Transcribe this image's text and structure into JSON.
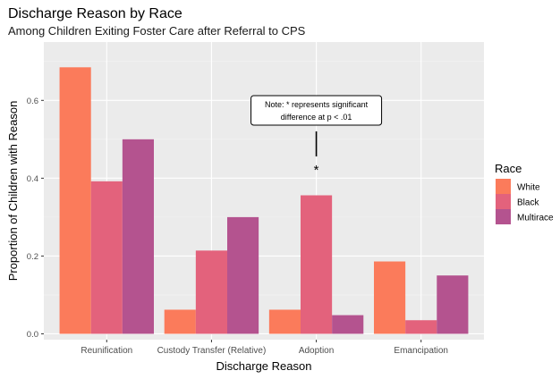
{
  "chart_data": {
    "type": "bar",
    "title": "Discharge Reason by Race",
    "subtitle": "Among Children Exiting Foster Care after Referral to CPS",
    "xlabel": "Discharge Reason",
    "ylabel": "Proportion of Children with Reason",
    "categories": [
      "Reunification",
      "Custody Transfer (Relative)",
      "Adoption",
      "Emancipation"
    ],
    "ylim": [
      -0.015,
      0.75
    ],
    "yticks": [
      0.0,
      0.2,
      0.4,
      0.6
    ],
    "ytick_labels": [
      "0.0",
      "0.2",
      "0.4",
      "0.6"
    ],
    "grid": true,
    "legend_title": "Race",
    "legend_position": "right",
    "series": [
      {
        "name": "White",
        "color": "#FB7B5B",
        "values": [
          0.685,
          0.062,
          0.062,
          0.186
        ]
      },
      {
        "name": "Black",
        "color": "#E3627C",
        "values": [
          0.392,
          0.214,
          0.356,
          0.035
        ]
      },
      {
        "name": "Multirace",
        "color": "#B4538F",
        "values": [
          0.5,
          0.3,
          0.048,
          0.15
        ]
      }
    ],
    "annotation": {
      "note_line1": "Note: * represents significant",
      "note_line2": "difference at p < .01",
      "marker": "*",
      "category": "Adoption"
    }
  }
}
